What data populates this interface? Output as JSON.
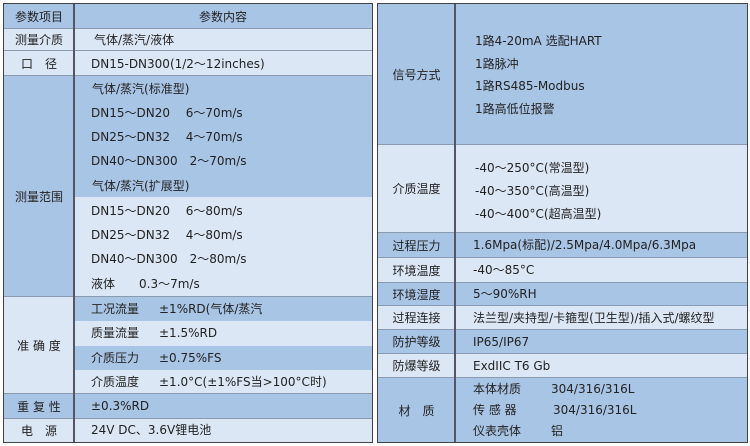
{
  "left": {
    "header": {
      "item": "参数项目",
      "content": "参数内容"
    },
    "medium": {
      "label": "测量介质",
      "value": "气体/蒸汽/液体"
    },
    "caliber": {
      "label": "口　径",
      "value": "DN15-DN300(1/2～12inches)"
    },
    "range": {
      "label": "测量范围",
      "lines": [
        "气体/蒸汽(标准型)",
        "DN15～DN20　 6～70m/s",
        "DN25～DN32　 4～70m/s",
        "DN40～DN300　2～70m/s",
        "气体/蒸汽(扩展型)",
        "DN15～DN20　 6～80m/s",
        "DN25～DN32　 4～80m/s",
        "DN40～DN300　2～80m/s",
        "液体　　0.3～7m/s"
      ]
    },
    "accuracy": {
      "label": "准 确 度",
      "rows": [
        {
          "k": "工况流量",
          "v": "±1%RD(气体/蒸汽"
        },
        {
          "k": "质量流量",
          "v": "±1.5%RD"
        },
        {
          "k": "介质压力",
          "v": "±0.75%FS"
        },
        {
          "k": "介质温度",
          "v": "±1.0°C(±1%FS当>100°C时)"
        }
      ]
    },
    "repeat": {
      "label": "重 复 性",
      "value": "±0.3%RD"
    },
    "power": {
      "label": "电　源",
      "value": "24V DC、3.6V锂电池"
    }
  },
  "right": {
    "signal": {
      "label": "信号方式",
      "lines": [
        "1路4-20mA 选配HART",
        "1路脉冲",
        "1路RS485-Modbus",
        "1路高低位报警"
      ]
    },
    "medium_temp": {
      "label": "介质温度",
      "lines": [
        "-40～250°C(常温型)",
        "-40～350°C(高温型)",
        "-40～400°C(超高温型)"
      ]
    },
    "pressure": {
      "label": "过程压力",
      "value": "1.6Mpa(标配)/2.5Mpa/4.0Mpa/6.3Mpa"
    },
    "env_temp": {
      "label": "环境温度",
      "value": "-40～85°C"
    },
    "env_hum": {
      "label": "环境湿度",
      "value": "5～90%RH"
    },
    "connection": {
      "label": "过程连接",
      "value": "法兰型/夹持型/卡箍型(卫生型)/插入式/螺纹型"
    },
    "protection": {
      "label": "防护等级",
      "value": "IP65/IP67"
    },
    "explosion": {
      "label": "防爆等级",
      "value": "ExdIIC T6 Gb"
    },
    "material": {
      "label": "材　质",
      "rows": [
        {
          "k": "本体材质",
          "v": "304/316/316L"
        },
        {
          "k": "传 感 器",
          "v": "304/316/316L"
        },
        {
          "k": "仪表壳体",
          "v": "铝"
        }
      ]
    }
  },
  "colors": {
    "dark": "#a9c5e6",
    "light": "#dce7f5",
    "border": "#444444"
  }
}
